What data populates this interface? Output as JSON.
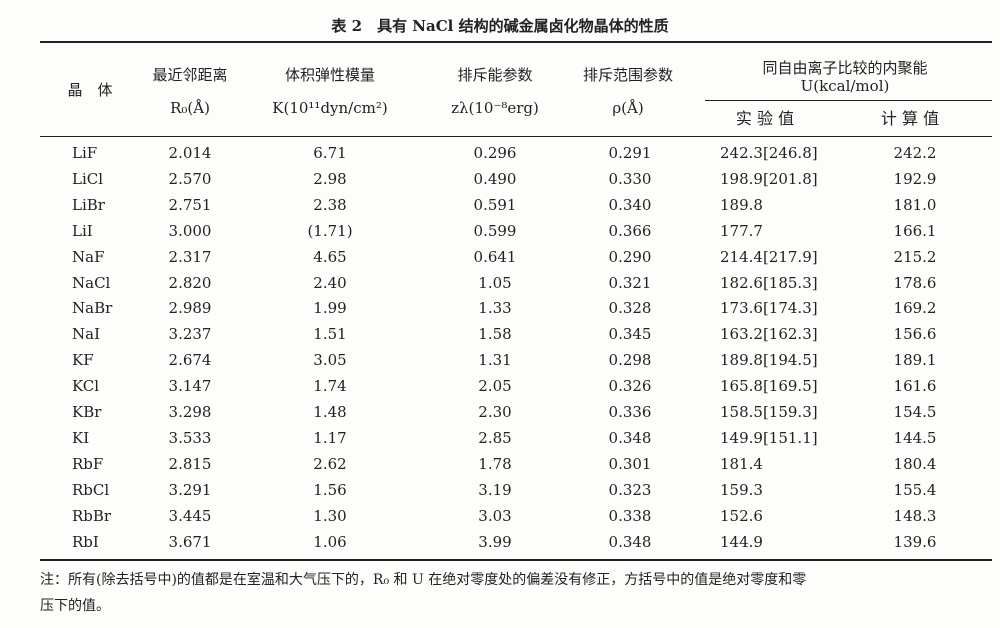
{
  "title": "表 2　具有 NaCl 结构的碱金属卤化物晶体的性质",
  "table": {
    "header": {
      "crystal": "晶　体",
      "r0": [
        "最近邻距离",
        "R₀(Å)"
      ],
      "k": [
        "体积弹性模量",
        "K(10¹¹dyn/cm²)"
      ],
      "zl": [
        "排斥能参数",
        "zλ(10⁻⁸erg)"
      ],
      "rho": [
        "排斥范围参数",
        "ρ(Å)"
      ],
      "u": [
        "同自由离子比较的内聚能",
        "U(kcal/mol)"
      ],
      "exp": "实 验 值",
      "calc": "计 算 值"
    },
    "rows": [
      [
        "LiF",
        "2.014",
        "6.71",
        "0.296",
        "0.291",
        "242.3[246.8]",
        "242.2"
      ],
      [
        "LiCl",
        "2.570",
        "2.98",
        "0.490",
        "0.330",
        "198.9[201.8]",
        "192.9"
      ],
      [
        "LiBr",
        "2.751",
        "2.38",
        "0.591",
        "0.340",
        "189.8",
        "181.0"
      ],
      [
        "LiI",
        "3.000",
        "(1.71)",
        "0.599",
        "0.366",
        "177.7",
        "166.1"
      ],
      [
        "NaF",
        "2.317",
        "4.65",
        "0.641",
        "0.290",
        "214.4[217.9]",
        "215.2"
      ],
      [
        "NaCl",
        "2.820",
        "2.40",
        "1.05",
        "0.321",
        "182.6[185.3]",
        "178.6"
      ],
      [
        "NaBr",
        "2.989",
        "1.99",
        "1.33",
        "0.328",
        "173.6[174.3]",
        "169.2"
      ],
      [
        "NaI",
        "3.237",
        "1.51",
        "1.58",
        "0.345",
        "163.2[162.3]",
        "156.6"
      ],
      [
        "KF",
        "2.674",
        "3.05",
        "1.31",
        "0.298",
        "189.8[194.5]",
        "189.1"
      ],
      [
        "KCl",
        "3.147",
        "1.74",
        "2.05",
        "0.326",
        "165.8[169.5]",
        "161.6"
      ],
      [
        "KBr",
        "3.298",
        "1.48",
        "2.30",
        "0.336",
        "158.5[159.3]",
        "154.5"
      ],
      [
        "KI",
        "3.533",
        "1.17",
        "2.85",
        "0.348",
        "149.9[151.1]",
        "144.5"
      ],
      [
        "RbF",
        "2.815",
        "2.62",
        "1.78",
        "0.301",
        "181.4",
        "180.4"
      ],
      [
        "RbCl",
        "3.291",
        "1.56",
        "3.19",
        "0.323",
        "159.3",
        "155.4"
      ],
      [
        "RbBr",
        "3.445",
        "1.30",
        "3.03",
        "0.338",
        "152.6",
        "148.3"
      ],
      [
        "RbI",
        "3.671",
        "1.06",
        "3.99",
        "0.348",
        "144.9",
        "139.6"
      ]
    ]
  },
  "note": [
    "注：所有(除去括号中)的值都是在室温和大气压下的，R₀ 和 U 在绝对零度处的偏差没有修正，方括号中的值是绝对零度和零",
    "压下的值。"
  ]
}
